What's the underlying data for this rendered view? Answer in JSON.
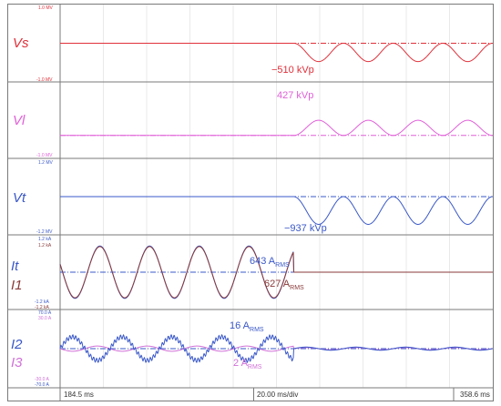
{
  "colors": {
    "vs": "#e0303a",
    "vl": "#e060d8",
    "vt": "#3a58c8",
    "it": "#3a58c8",
    "i1": "#8a3a3a",
    "i2": "#3a58c8",
    "i3": "#d070d8",
    "grid": "#c8c8c8",
    "frame": "#7a7a7a"
  },
  "chart_data": {
    "type": "line",
    "x_unit": "ms",
    "xlim": [
      184.5,
      358.6
    ],
    "x_start_label": "184.5 ms",
    "x_division_label": "20.00 ms/div",
    "x_end_label": "358.6 ms",
    "channels": [
      {
        "id": "vs",
        "label": "Vs",
        "scale_top": "1.0 MV",
        "scale_bottom": "-1.0 MV",
        "ylim": [
          -1.0,
          1.0
        ],
        "unit": "MV",
        "reference_level": 0.0,
        "onset_ms": 278.5,
        "period_ms": 20.0,
        "peak": -0.51,
        "annotation": {
          "text": "−510 kVp",
          "sub": ""
        },
        "series": [
          {
            "name": "Vs",
            "color_key": "vs",
            "waveform": "sine-after-onset",
            "amplitude": 0.51,
            "start_phase": "down"
          }
        ]
      },
      {
        "id": "vl",
        "label": "Vl",
        "scale_top": "",
        "scale_bottom": "-1.0 MV",
        "ylim": [
          -1.0,
          1.0
        ],
        "unit": "MV",
        "reference_level": -0.43,
        "onset_ms": 278.5,
        "period_ms": 20.0,
        "peak": 0.427,
        "annotation": {
          "text": "427 kVp",
          "sub": ""
        },
        "series": [
          {
            "name": "Vl",
            "color_key": "vl",
            "waveform": "pulse-after-onset",
            "amplitude": 0.427,
            "start_phase": "up"
          }
        ]
      },
      {
        "id": "vt",
        "label": "Vt",
        "scale_top": "1.2 MV",
        "scale_bottom": "-1.2 MV",
        "ylim": [
          -1.2,
          1.2
        ],
        "unit": "MV",
        "reference_level": 0.0,
        "onset_ms": 278.5,
        "period_ms": 20.0,
        "peak": -0.937,
        "annotation": {
          "text": "−937 kVp",
          "sub": ""
        },
        "series": [
          {
            "name": "Vt",
            "color_key": "vt",
            "waveform": "pulse-after-onset",
            "amplitude": 0.937,
            "start_phase": "down"
          }
        ]
      },
      {
        "id": "i1",
        "label": "It",
        "label2": "I1",
        "scale_top": "1.2 kA",
        "scale_top2": "1.2 kA",
        "scale_bottom": "-1.2 kA",
        "scale_bottom2": "-1.2 kA",
        "ylim": [
          -1.2,
          1.2
        ],
        "unit": "kA",
        "reference_level": 0.0,
        "onset_ms": 278.5,
        "period_ms": 20.0,
        "annotations": [
          {
            "text": "643 A",
            "sub": "RMS",
            "color_key": "it"
          },
          {
            "text": "627 A",
            "sub": "RMS",
            "color_key": "i1"
          }
        ],
        "series": [
          {
            "name": "It",
            "color_key": "it",
            "waveform": "sine-before-onset",
            "amplitude": 0.909
          },
          {
            "name": "I1",
            "color_key": "i1",
            "waveform": "sine-before-onset",
            "amplitude": 0.887
          }
        ]
      },
      {
        "id": "i2",
        "label": "I2",
        "label2": "I3",
        "scale_top": "70.0 A",
        "scale_top2": "30.0 A",
        "scale_bottom": "-30.0 A",
        "scale_bottom2": "-70.0 A",
        "ylim": [
          -70,
          70
        ],
        "unit": "A",
        "reference_level": 0.0,
        "onset_ms": 278.5,
        "period_ms": 20.0,
        "annotations": [
          {
            "text": "16 A",
            "sub": "RMS",
            "color_key": "i2"
          },
          {
            "text": "2 A",
            "sub": "RMS",
            "color_key": "i3"
          }
        ],
        "series": [
          {
            "name": "I2",
            "color_key": "i2",
            "waveform": "ripple-before-onset",
            "amplitude": 22.6,
            "ripple_after": 3.0
          },
          {
            "name": "I3",
            "color_key": "i3",
            "waveform": "ripple-before-onset",
            "amplitude": 5.0,
            "ripple_after": 2.0
          }
        ]
      }
    ]
  }
}
